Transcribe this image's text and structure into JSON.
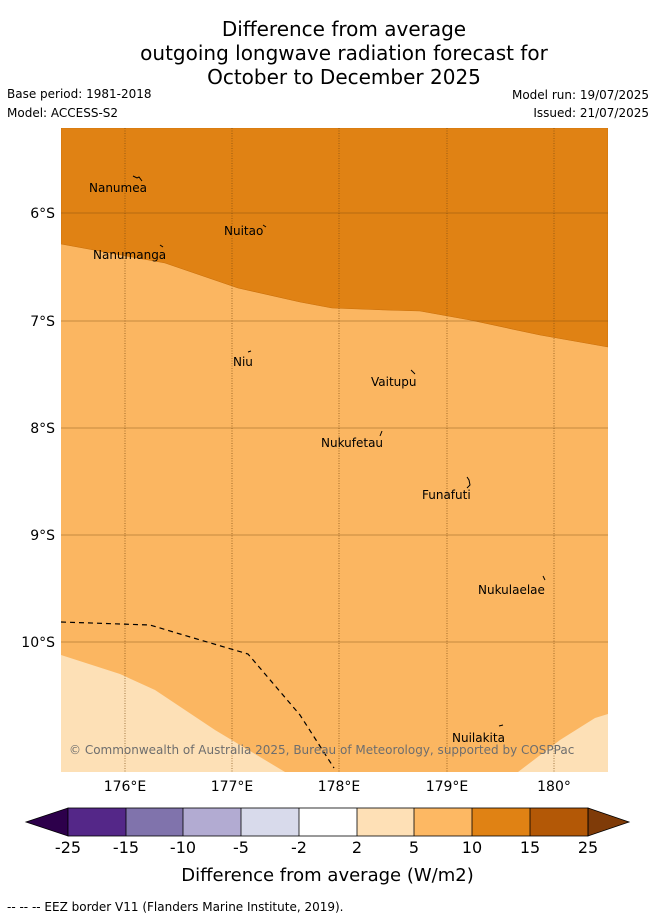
{
  "header": {
    "title_lines": [
      "Difference from average",
      "outgoing longwave radiation forecast for",
      "October to December 2025"
    ],
    "base_period": "Base period: 1981-2018",
    "model": "Model: ACCESS-S2",
    "model_run": "Model run: 19/07/2025",
    "issued": "Issued: 21/07/2025"
  },
  "map": {
    "lat_labels": [
      "6°S",
      "7°S",
      "8°S",
      "9°S",
      "10°S"
    ],
    "lon_labels": [
      "176°E",
      "177°E",
      "178°E",
      "179°E",
      "180°"
    ],
    "places": [
      "Nanumea",
      "Nuitao",
      "Nanumanga",
      "Niu",
      "Vaitupu",
      "Nukufetau",
      "Funafuti",
      "Nukulaelae",
      "Nuilakita"
    ],
    "copyright": "© Commonwealth of Australia 2025, Bureau of Meteorology, supported by COSPPac",
    "region_colors": {
      "band_2_5": "#fde0b6",
      "band_5_10": "#fbb661",
      "band_10_15": "#e08214"
    }
  },
  "colorbar": {
    "tick_labels": [
      "-25",
      "-15",
      "-10",
      "-5",
      "-2",
      "2",
      "5",
      "10",
      "15",
      "25"
    ],
    "colors": [
      "#2d004b",
      "#542788",
      "#8073ac",
      "#b2abd2",
      "#d8daeb",
      "#ffffff",
      "#fee0b6",
      "#fdb863",
      "#e08214",
      "#b35806",
      "#7f3b08"
    ],
    "label": "Difference from average (W/m2)"
  },
  "footer": {
    "eez_note": "--  --  -- EEZ border V11 (Flanders Marine Institute, 2019)."
  }
}
